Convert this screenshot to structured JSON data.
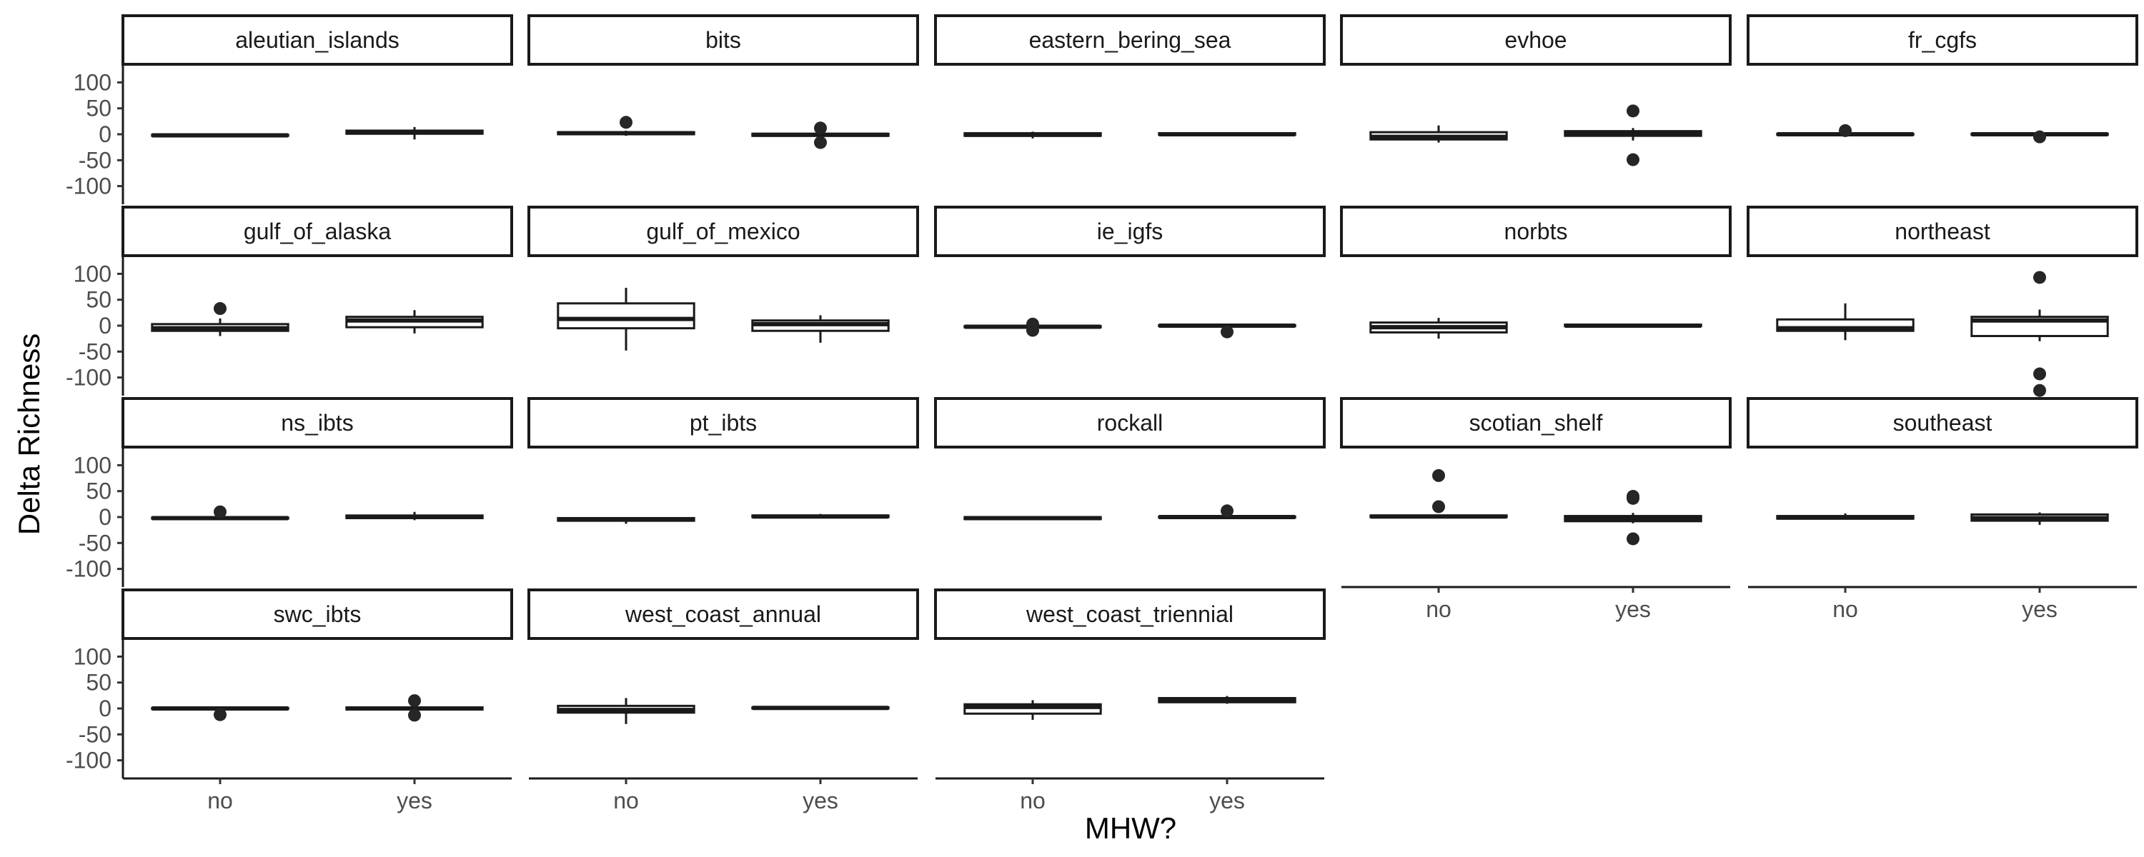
{
  "chart_data": {
    "type": "boxplot",
    "facet_by": "region",
    "facet_columns": 5,
    "xlabel": "MHW?",
    "ylabel": "Delta Richness",
    "categories": [
      "no",
      "yes"
    ],
    "ylim": [
      -135,
      135
    ],
    "yticks": [
      -100,
      -50,
      0,
      50,
      100
    ],
    "grid": false,
    "panels": [
      {
        "name": "aleutian_islands",
        "boxes": [
          {
            "category": "no",
            "whisker_low": -4,
            "q1": -3,
            "median": -2,
            "q3": -1,
            "whisker_high": 0,
            "outliers": []
          },
          {
            "category": "yes",
            "whisker_low": -10,
            "q1": 1,
            "median": 4,
            "q3": 7,
            "whisker_high": 14,
            "outliers": []
          }
        ]
      },
      {
        "name": "bits",
        "boxes": [
          {
            "category": "no",
            "whisker_low": -3,
            "q1": 0,
            "median": 2,
            "q3": 4,
            "whisker_high": 7,
            "outliers": [
              23
            ]
          },
          {
            "category": "yes",
            "whisker_low": -6,
            "q1": -3,
            "median": -1,
            "q3": 1,
            "whisker_high": 4,
            "outliers": [
              12,
              -16
            ]
          }
        ]
      },
      {
        "name": "eastern_bering_sea",
        "boxes": [
          {
            "category": "no",
            "whisker_low": -8,
            "q1": -3,
            "median": -1,
            "q3": 2,
            "whisker_high": 5,
            "outliers": []
          },
          {
            "category": "yes",
            "whisker_low": -3,
            "q1": -1,
            "median": 0,
            "q3": 2,
            "whisker_high": 3,
            "outliers": []
          }
        ]
      },
      {
        "name": "evhoe",
        "boxes": [
          {
            "category": "no",
            "whisker_low": -16,
            "q1": -10,
            "median": -5,
            "q3": 4,
            "whisker_high": 17,
            "outliers": []
          },
          {
            "category": "yes",
            "whisker_low": -12,
            "q1": -3,
            "median": 1,
            "q3": 6,
            "whisker_high": 12,
            "outliers": [
              45,
              -49
            ]
          }
        ]
      },
      {
        "name": "fr_cgfs",
        "boxes": [
          {
            "category": "no",
            "whisker_low": -3,
            "q1": -1,
            "median": 0,
            "q3": 1,
            "whisker_high": 3,
            "outliers": [
              7
            ]
          },
          {
            "category": "yes",
            "whisker_low": -3,
            "q1": -1,
            "median": 0,
            "q3": 1,
            "whisker_high": 3,
            "outliers": [
              -5
            ]
          }
        ]
      },
      {
        "name": "gulf_of_alaska",
        "boxes": [
          {
            "category": "no",
            "whisker_low": -20,
            "q1": -10,
            "median": -5,
            "q3": 3,
            "whisker_high": 14,
            "outliers": [
              33
            ]
          },
          {
            "category": "yes",
            "whisker_low": -15,
            "q1": -3,
            "median": 10,
            "q3": 17,
            "whisker_high": 30,
            "outliers": []
          }
        ]
      },
      {
        "name": "gulf_of_mexico",
        "boxes": [
          {
            "category": "no",
            "whisker_low": -48,
            "q1": -5,
            "median": 13,
            "q3": 43,
            "whisker_high": 73,
            "outliers": []
          },
          {
            "category": "yes",
            "whisker_low": -33,
            "q1": -10,
            "median": 3,
            "q3": 10,
            "whisker_high": 20,
            "outliers": []
          }
        ]
      },
      {
        "name": "ie_igfs",
        "boxes": [
          {
            "category": "no",
            "whisker_low": -4,
            "q1": -3,
            "median": -2,
            "q3": -1,
            "whisker_high": 0,
            "outliers": [
              3,
              -9
            ]
          },
          {
            "category": "yes",
            "whisker_low": -4,
            "q1": -1,
            "median": 0,
            "q3": 1,
            "whisker_high": 3,
            "outliers": [
              -12
            ]
          }
        ]
      },
      {
        "name": "norbts",
        "boxes": [
          {
            "category": "no",
            "whisker_low": -25,
            "q1": -13,
            "median": -3,
            "q3": 6,
            "whisker_high": 15,
            "outliers": []
          },
          {
            "category": "yes",
            "whisker_low": -4,
            "q1": -1,
            "median": 0,
            "q3": 2,
            "whisker_high": 4,
            "outliers": []
          }
        ]
      },
      {
        "name": "northeast",
        "boxes": [
          {
            "category": "no",
            "whisker_low": -28,
            "q1": -10,
            "median": -5,
            "q3": 12,
            "whisker_high": 43,
            "outliers": []
          },
          {
            "category": "yes",
            "whisker_low": -30,
            "q1": -20,
            "median": 10,
            "q3": 17,
            "whisker_high": 31,
            "outliers": [
              93,
              -93,
              -125
            ]
          }
        ]
      },
      {
        "name": "ns_ibts",
        "boxes": [
          {
            "category": "no",
            "whisker_low": -6,
            "q1": -3,
            "median": -2,
            "q3": -1,
            "whisker_high": 2,
            "outliers": [
              10
            ]
          },
          {
            "category": "yes",
            "whisker_low": -6,
            "q1": -2,
            "median": 0,
            "q3": 3,
            "whisker_high": 10,
            "outliers": []
          }
        ]
      },
      {
        "name": "pt_ibts",
        "boxes": [
          {
            "category": "no",
            "whisker_low": -13,
            "q1": -7,
            "median": -5,
            "q3": -2,
            "whisker_high": 0,
            "outliers": []
          },
          {
            "category": "yes",
            "whisker_low": -2,
            "q1": 0,
            "median": 1,
            "q3": 3,
            "whisker_high": 6,
            "outliers": []
          }
        ]
      },
      {
        "name": "rockall",
        "boxes": [
          {
            "category": "no",
            "whisker_low": -5,
            "q1": -4,
            "median": -2,
            "q3": 0,
            "whisker_high": 2,
            "outliers": []
          },
          {
            "category": "yes",
            "whisker_low": -3,
            "q1": -1,
            "median": 0,
            "q3": 1,
            "whisker_high": 3,
            "outliers": [
              12
            ]
          }
        ]
      },
      {
        "name": "scotian_shelf",
        "boxes": [
          {
            "category": "no",
            "whisker_low": -2,
            "q1": 0,
            "median": 1,
            "q3": 3,
            "whisker_high": 5,
            "outliers": [
              80,
              20
            ]
          },
          {
            "category": "yes",
            "whisker_low": -12,
            "q1": -8,
            "median": -3,
            "q3": 2,
            "whisker_high": 8,
            "outliers": [
              40,
              36,
              -42
            ]
          }
        ]
      },
      {
        "name": "southeast",
        "boxes": [
          {
            "category": "no",
            "whisker_low": -5,
            "q1": -3,
            "median": -1,
            "q3": 2,
            "whisker_high": 7,
            "outliers": []
          },
          {
            "category": "yes",
            "whisker_low": -15,
            "q1": -7,
            "median": -2,
            "q3": 5,
            "whisker_high": 9,
            "outliers": []
          }
        ]
      },
      {
        "name": "swc_ibts",
        "boxes": [
          {
            "category": "no",
            "whisker_low": -3,
            "q1": -1,
            "median": 0,
            "q3": 1,
            "whisker_high": 3,
            "outliers": [
              -12
            ]
          },
          {
            "category": "yes",
            "whisker_low": -5,
            "q1": -2,
            "median": 0,
            "q3": 2,
            "whisker_high": 5,
            "outliers": [
              15,
              -13
            ]
          }
        ]
      },
      {
        "name": "west_coast_annual",
        "boxes": [
          {
            "category": "no",
            "whisker_low": -30,
            "q1": -8,
            "median": -3,
            "q3": 5,
            "whisker_high": 20,
            "outliers": []
          },
          {
            "category": "yes",
            "whisker_low": -1,
            "q1": 0,
            "median": 1,
            "q3": 2,
            "whisker_high": 3,
            "outliers": []
          }
        ]
      },
      {
        "name": "west_coast_triennial",
        "boxes": [
          {
            "category": "no",
            "whisker_low": -22,
            "q1": -10,
            "median": 3,
            "q3": 8,
            "whisker_high": 16,
            "outliers": []
          },
          {
            "category": "yes",
            "whisker_low": 9,
            "q1": 12,
            "median": 16,
            "q3": 20,
            "whisker_high": 24,
            "outliers": []
          }
        ]
      }
    ]
  }
}
